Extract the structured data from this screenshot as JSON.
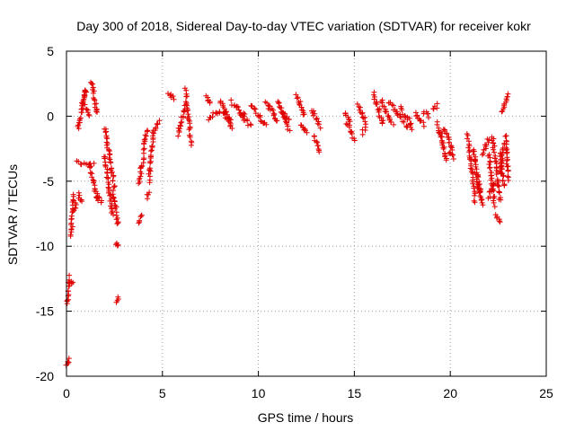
{
  "chart_data": {
    "type": "scatter",
    "title": "Day 300 of 2018, Sidereal Day-to-day VTEC variation (SDTVAR) for receiver kokr",
    "xlabel": "GPS time / hours",
    "ylabel": "SDTVAR / TECUs",
    "xlim": [
      0,
      25
    ],
    "ylim": [
      -20,
      5
    ],
    "xticks": [
      0,
      5,
      10,
      15,
      20,
      25
    ],
    "yticks": [
      -20,
      -15,
      -10,
      -5,
      0,
      5
    ],
    "xtick_labels": [
      "0",
      "5",
      "10",
      "15",
      "20",
      "25"
    ],
    "ytick_labels": [
      "-20",
      "-15",
      "-10",
      "-5",
      "0",
      "5"
    ],
    "grid": true,
    "marker": "+",
    "color": "#e00000",
    "series": [
      {
        "name": "SDTVAR",
        "segments": [
          {
            "x0": 0.0,
            "x1": 0.1,
            "y0": -19.2,
            "y1": -18.7
          },
          {
            "x0": 0.05,
            "x1": 0.15,
            "y0": -14.5,
            "y1": -12.4
          },
          {
            "x0": 0.2,
            "x1": 0.3,
            "y0": -12.9,
            "y1": -12.8
          },
          {
            "x0": 0.25,
            "x1": 0.35,
            "y0": -9.3,
            "y1": -6.0
          },
          {
            "x0": 0.4,
            "x1": 0.5,
            "y0": -7.3,
            "y1": -6.7
          },
          {
            "x0": 0.5,
            "x1": 1.4,
            "y0": -3.5,
            "y1": -3.7
          },
          {
            "x0": 0.6,
            "x1": 0.8,
            "y0": -6.0,
            "y1": -6.6
          },
          {
            "x0": 0.6,
            "x1": 1.0,
            "y0": -1.0,
            "y1": 2.0
          },
          {
            "x0": 0.8,
            "x1": 1.0,
            "y0": 1.0,
            "y1": 2.0
          },
          {
            "x0": 1.0,
            "x1": 1.2,
            "y0": 0.8,
            "y1": 0.0
          },
          {
            "x0": 1.2,
            "x1": 1.6,
            "y0": -3.8,
            "y1": -6.5
          },
          {
            "x0": 1.3,
            "x1": 1.6,
            "y0": 2.7,
            "y1": 0.2
          },
          {
            "x0": 1.6,
            "x1": 1.8,
            "y0": -6.0,
            "y1": -6.6
          },
          {
            "x0": 2.0,
            "x1": 2.5,
            "y0": -0.9,
            "y1": -5.5
          },
          {
            "x0": 2.0,
            "x1": 2.4,
            "y0": -3.0,
            "y1": -7.6
          },
          {
            "x0": 2.4,
            "x1": 2.7,
            "y0": -5.8,
            "y1": -8.3
          },
          {
            "x0": 2.6,
            "x1": 2.7,
            "y0": -10.0,
            "y1": -9.8
          },
          {
            "x0": 2.6,
            "x1": 2.7,
            "y0": -14.4,
            "y1": -14.0
          },
          {
            "x0": 3.8,
            "x1": 3.9,
            "y0": -8.3,
            "y1": -7.6
          },
          {
            "x0": 3.8,
            "x1": 4.0,
            "y0": -5.2,
            "y1": -3.2
          },
          {
            "x0": 4.0,
            "x1": 4.2,
            "y0": -2.7,
            "y1": -1.0
          },
          {
            "x0": 4.2,
            "x1": 4.3,
            "y0": -6.2,
            "y1": -6.0
          },
          {
            "x0": 4.3,
            "x1": 4.5,
            "y0": -5.0,
            "y1": -1.5
          },
          {
            "x0": 4.5,
            "x1": 4.8,
            "y0": -1.5,
            "y1": -0.4
          },
          {
            "x0": 5.3,
            "x1": 5.6,
            "y0": 1.7,
            "y1": 1.3
          },
          {
            "x0": 5.8,
            "x1": 6.2,
            "y0": -1.4,
            "y1": 0.7
          },
          {
            "x0": 6.2,
            "x1": 6.5,
            "y0": 2.0,
            "y1": -2.1
          },
          {
            "x0": 7.3,
            "x1": 7.5,
            "y0": 1.6,
            "y1": 1.0
          },
          {
            "x0": 7.4,
            "x1": 8.0,
            "y0": -0.2,
            "y1": 0.5
          },
          {
            "x0": 8.0,
            "x1": 8.6,
            "y0": 1.3,
            "y1": -0.6
          },
          {
            "x0": 8.2,
            "x1": 8.6,
            "y0": 0.4,
            "y1": -0.8
          },
          {
            "x0": 8.6,
            "x1": 9.3,
            "y0": 1.1,
            "y1": 0.0
          },
          {
            "x0": 9.0,
            "x1": 9.6,
            "y0": 0.3,
            "y1": -0.8
          },
          {
            "x0": 9.6,
            "x1": 10.4,
            "y0": 0.9,
            "y1": -0.7
          },
          {
            "x0": 10.4,
            "x1": 11.0,
            "y0": 1.2,
            "y1": -0.5
          },
          {
            "x0": 11.0,
            "x1": 11.6,
            "y0": 1.1,
            "y1": -1.0
          },
          {
            "x0": 11.2,
            "x1": 11.6,
            "y0": 0.4,
            "y1": -0.3
          },
          {
            "x0": 12.0,
            "x1": 12.4,
            "y0": 1.6,
            "y1": 0.0
          },
          {
            "x0": 12.2,
            "x1": 12.5,
            "y0": -0.6,
            "y1": -1.3
          },
          {
            "x0": 12.8,
            "x1": 13.2,
            "y0": 0.5,
            "y1": -0.8
          },
          {
            "x0": 12.9,
            "x1": 13.2,
            "y0": -1.5,
            "y1": -2.6
          },
          {
            "x0": 14.5,
            "x1": 14.8,
            "y0": 0.2,
            "y1": -0.4
          },
          {
            "x0": 14.6,
            "x1": 15.0,
            "y0": -0.5,
            "y1": -1.8
          },
          {
            "x0": 15.2,
            "x1": 15.6,
            "y0": 0.8,
            "y1": -0.5
          },
          {
            "x0": 15.4,
            "x1": 15.6,
            "y0": -1.3,
            "y1": -1.0
          },
          {
            "x0": 16.0,
            "x1": 16.5,
            "y0": 1.7,
            "y1": -0.6
          },
          {
            "x0": 16.4,
            "x1": 17.0,
            "y0": 1.2,
            "y1": -0.7
          },
          {
            "x0": 16.8,
            "x1": 17.5,
            "y0": 1.1,
            "y1": -0.3
          },
          {
            "x0": 17.4,
            "x1": 18.0,
            "y0": 0.6,
            "y1": -0.6
          },
          {
            "x0": 17.6,
            "x1": 18.0,
            "y0": -0.5,
            "y1": -1.0
          },
          {
            "x0": 18.2,
            "x1": 18.6,
            "y0": 0.3,
            "y1": -0.7
          },
          {
            "x0": 18.6,
            "x1": 18.9,
            "y0": 0.4,
            "y1": 0.0
          },
          {
            "x0": 19.1,
            "x1": 19.3,
            "y0": 0.4,
            "y1": 0.8
          },
          {
            "x0": 19.3,
            "x1": 19.6,
            "y0": -0.6,
            "y1": -2.0
          },
          {
            "x0": 19.5,
            "x1": 19.8,
            "y0": -1.2,
            "y1": -3.5
          },
          {
            "x0": 19.7,
            "x1": 20.1,
            "y0": -1.0,
            "y1": -2.6
          },
          {
            "x0": 19.9,
            "x1": 20.2,
            "y0": -2.8,
            "y1": -3.2
          },
          {
            "x0": 20.9,
            "x1": 21.3,
            "y0": -1.5,
            "y1": -6.5
          },
          {
            "x0": 21.2,
            "x1": 21.6,
            "y0": -2.5,
            "y1": -6.0
          },
          {
            "x0": 21.3,
            "x1": 21.7,
            "y0": -4.5,
            "y1": -6.8
          },
          {
            "x0": 21.7,
            "x1": 22.0,
            "y0": -3.0,
            "y1": -1.7
          },
          {
            "x0": 22.0,
            "x1": 22.3,
            "y0": -3.0,
            "y1": -6.8
          },
          {
            "x0": 22.0,
            "x1": 22.3,
            "y0": -6.2,
            "y1": -5.2
          },
          {
            "x0": 22.2,
            "x1": 22.6,
            "y0": -1.5,
            "y1": -6.5
          },
          {
            "x0": 22.4,
            "x1": 22.6,
            "y0": -7.6,
            "y1": -8.1
          },
          {
            "x0": 22.6,
            "x1": 22.8,
            "y0": -4.5,
            "y1": -2.0
          },
          {
            "x0": 22.6,
            "x1": 22.8,
            "y0": -2.8,
            "y1": -5.5
          },
          {
            "x0": 22.7,
            "x1": 23.0,
            "y0": 0.3,
            "y1": 1.7
          },
          {
            "x0": 22.9,
            "x1": 23.0,
            "y0": -1.5,
            "y1": -4.8
          }
        ]
      }
    ]
  }
}
